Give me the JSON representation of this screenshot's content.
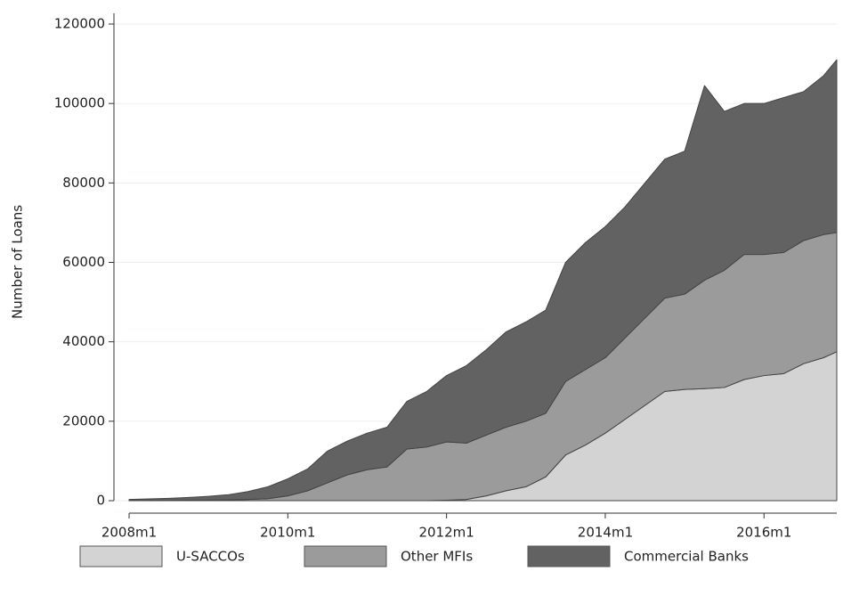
{
  "chart_data": {
    "type": "stacked_area",
    "y_label": "Number of Loans",
    "x": [
      "2008m1",
      "2008m4",
      "2008m7",
      "2008m10",
      "2009m1",
      "2009m4",
      "2009m7",
      "2009m10",
      "2010m1",
      "2010m4",
      "2010m7",
      "2010m10",
      "2011m1",
      "2011m4",
      "2011m7",
      "2011m10",
      "2012m1",
      "2012m4",
      "2012m7",
      "2012m10",
      "2013m1",
      "2013m4",
      "2013m7",
      "2013m10",
      "2014m1",
      "2014m4",
      "2014m7",
      "2014m10",
      "2015m1",
      "2015m4",
      "2015m7",
      "2015m10",
      "2016m1",
      "2016m4",
      "2016m7",
      "2016m10",
      "2016m12"
    ],
    "series": [
      {
        "name": "U-SACCOs",
        "color": "#d3d3d3",
        "values": [
          0,
          0,
          0,
          0,
          0,
          0,
          0,
          0,
          0,
          0,
          0,
          0,
          0,
          0,
          0,
          0,
          100,
          300,
          1200,
          2500,
          3500,
          6000,
          11500,
          14000,
          17000,
          20500,
          24000,
          27500,
          28000,
          28200,
          28500,
          30500,
          31500,
          32000,
          34500,
          36000,
          37500
        ]
      },
      {
        "name": "Other MFIs",
        "color": "#9b9b9b",
        "values": [
          50,
          60,
          80,
          100,
          150,
          200,
          300,
          500,
          1200,
          2500,
          4500,
          6500,
          7800,
          8500,
          13000,
          13500,
          14700,
          14200,
          15300,
          16000,
          16500,
          16000,
          18500,
          19000,
          19000,
          20500,
          22000,
          23500,
          24000,
          27300,
          29500,
          31500,
          30500,
          30500,
          31000,
          31000,
          30000
        ]
      },
      {
        "name": "Commercial Banks",
        "color": "#626262",
        "values": [
          250,
          390,
          520,
          700,
          950,
          1300,
          2000,
          3000,
          4300,
          5500,
          8000,
          8500,
          9200,
          10000,
          12000,
          14000,
          16700,
          19500,
          21500,
          24000,
          25000,
          26000,
          30000,
          32000,
          33000,
          33000,
          34000,
          35000,
          36000,
          49000,
          40000,
          38000,
          38000,
          39000,
          37500,
          40000,
          43500
        ]
      }
    ],
    "xlim": [
      "2008m1",
      "2016m12"
    ],
    "xticks": [
      "2008m1",
      "2010m1",
      "2012m1",
      "2014m1",
      "2016m1"
    ],
    "ylim": [
      0,
      120000
    ],
    "yticks": [
      0,
      20000,
      40000,
      60000,
      80000,
      100000,
      120000
    ],
    "grid": true,
    "legend": "bottom"
  }
}
